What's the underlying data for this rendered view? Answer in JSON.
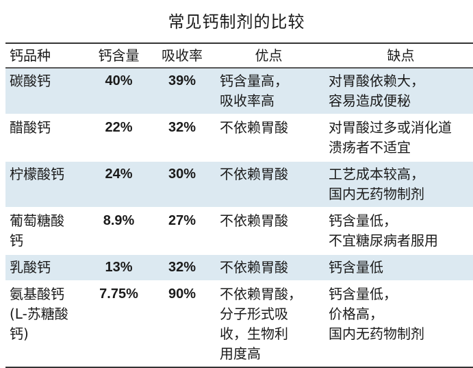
{
  "title": "常见钙制剂的比较",
  "headers": [
    "钙品种",
    "钙含量",
    "吸收率",
    "优点",
    "缺点"
  ],
  "rows": [
    {
      "name": [
        "碳酸钙"
      ],
      "content": "40%",
      "absorption": "39%",
      "pros": [
        "钙含量高，",
        "吸收率高"
      ],
      "cons": [
        "对胃酸依赖大，",
        "容易造成便秘"
      ]
    },
    {
      "name": [
        "醋酸钙"
      ],
      "content": "22%",
      "absorption": "32%",
      "pros": [
        "不依赖胃酸"
      ],
      "cons": [
        "对胃酸过多或消化道",
        "溃疡者不适宜"
      ]
    },
    {
      "name": [
        "柠檬酸钙"
      ],
      "content": "24%",
      "absorption": "30%",
      "pros": [
        "不依赖胃酸"
      ],
      "cons": [
        "工艺成本较高，",
        "国内无药物制剂"
      ]
    },
    {
      "name": [
        "葡萄糖酸",
        "钙"
      ],
      "content": "8.9%",
      "absorption": "27%",
      "pros": [
        "不依赖胃酸"
      ],
      "cons": [
        "钙含量低，",
        "不宜糖尿病者服用"
      ]
    },
    {
      "name": [
        "乳酸钙"
      ],
      "content": "13%",
      "absorption": "32%",
      "pros": [
        "不依赖胃酸"
      ],
      "cons": [
        "钙含量低"
      ]
    },
    {
      "name": [
        "氨基酸钙",
        "(L-苏糖酸",
        "钙)"
      ],
      "content": "7.75%",
      "absorption": "90%",
      "pros": [
        "不依赖胃酸，",
        "分子形式吸",
        "收，生物利",
        "用度高"
      ],
      "cons": [
        "钙含量低，",
        "价格高，",
        "国内无药物制剂"
      ]
    }
  ],
  "colors": {
    "row_highlight": "#dce9f1",
    "rule": "#333333"
  }
}
